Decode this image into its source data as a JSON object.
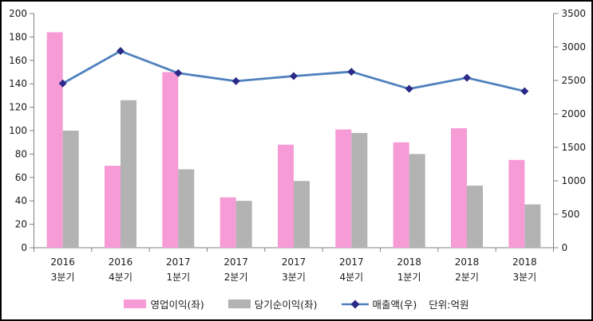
{
  "chart_data": {
    "type": "bar+line",
    "title": "",
    "legend_position": "bottom",
    "grid": false,
    "categories": [
      [
        "2016",
        "3분기"
      ],
      [
        "2016",
        "4분기"
      ],
      [
        "2017",
        "1분기"
      ],
      [
        "2017",
        "2분기"
      ],
      [
        "2017",
        "3분기"
      ],
      [
        "2017",
        "4분기"
      ],
      [
        "2018",
        "1분기"
      ],
      [
        "2018",
        "2분기"
      ],
      [
        "2018",
        "3분기"
      ]
    ],
    "series": [
      {
        "name": "영업이익(좌)",
        "kind": "bar",
        "axis": "left",
        "color": "#F79BD7",
        "values": [
          184,
          70,
          150,
          43,
          88,
          101,
          90,
          102,
          75
        ]
      },
      {
        "name": "당기순이익(좌)",
        "kind": "bar",
        "axis": "left",
        "color": "#B3B3B3",
        "values": [
          100,
          126,
          67,
          40,
          57,
          98,
          80,
          53,
          37
        ]
      },
      {
        "name": "매출액(우)",
        "kind": "line",
        "axis": "right",
        "color": "#4F81BD",
        "marker_color": "#2B2A86",
        "values": [
          2455,
          2940,
          2610,
          2490,
          2565,
          2630,
          2375,
          2540,
          2340
        ]
      }
    ],
    "left_axis": {
      "min": 0,
      "max": 200,
      "step": 20,
      "ticks": [
        0,
        20,
        40,
        60,
        80,
        100,
        120,
        140,
        160,
        180,
        200
      ]
    },
    "right_axis": {
      "min": 0,
      "max": 3500,
      "step": 500,
      "ticks": [
        0,
        500,
        1000,
        1500,
        2000,
        2500,
        3000,
        3500
      ]
    },
    "unit_label": "단위:억원",
    "axis_color": "#808080",
    "label_color": "#1a1a1a"
  }
}
